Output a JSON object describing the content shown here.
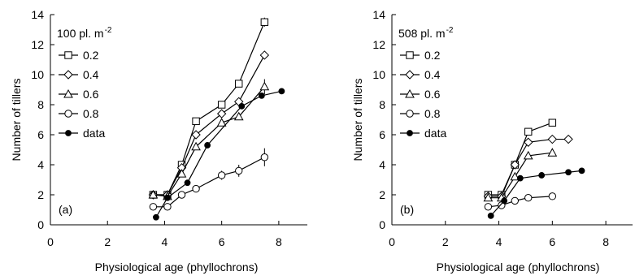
{
  "chart_data": [
    {
      "type": "line",
      "panel_label": "(a)",
      "density_label": "100 pl. m",
      "density_exponent": "-2",
      "xlabel": "Physiological age (phyllochrons)",
      "ylabel": "Number of tillers",
      "xlim": [
        0,
        9
      ],
      "ylim": [
        0,
        14
      ],
      "xticks": [
        0,
        2,
        4,
        6,
        8
      ],
      "yticks": [
        0,
        2,
        4,
        6,
        8,
        10,
        12,
        14
      ],
      "grid": false,
      "legend_position": "top-left",
      "series": [
        {
          "name": "0.2",
          "marker": "square",
          "x": [
            3.6,
            4.1,
            4.6,
            5.1,
            6.0,
            6.6,
            7.5
          ],
          "y": [
            2.0,
            2.0,
            4.0,
            6.9,
            8.0,
            9.4,
            13.5
          ],
          "err": [
            0,
            0,
            0,
            0,
            0,
            0,
            0.3
          ]
        },
        {
          "name": "0.4",
          "marker": "diamond",
          "x": [
            3.6,
            4.1,
            4.6,
            5.1,
            6.0,
            6.6,
            7.5
          ],
          "y": [
            2.0,
            2.0,
            3.8,
            6.0,
            7.4,
            8.2,
            11.3
          ],
          "err": [
            0,
            0,
            0,
            0,
            0,
            0,
            0
          ]
        },
        {
          "name": "0.6",
          "marker": "triangle",
          "x": [
            3.6,
            4.1,
            4.6,
            5.1,
            6.0,
            6.6,
            7.5
          ],
          "y": [
            2.0,
            1.9,
            3.4,
            5.2,
            6.8,
            7.2,
            9.2
          ],
          "err": [
            0,
            0,
            0,
            0,
            0,
            0,
            0.5
          ]
        },
        {
          "name": "0.8",
          "marker": "circle",
          "x": [
            3.6,
            4.1,
            4.6,
            5.1,
            6.0,
            6.6,
            7.5
          ],
          "y": [
            1.2,
            1.2,
            2.0,
            2.4,
            3.3,
            3.6,
            4.5
          ],
          "err": [
            0,
            0,
            0,
            0,
            0.3,
            0.4,
            0.6
          ]
        },
        {
          "name": "data",
          "marker": "filled-circle",
          "x": [
            3.7,
            4.1,
            4.8,
            5.5,
            6.7,
            7.4,
            8.1
          ],
          "y": [
            0.5,
            1.8,
            2.8,
            5.3,
            7.9,
            8.6,
            8.9
          ],
          "err": [
            0,
            0,
            0,
            0,
            0,
            0,
            0
          ]
        }
      ]
    },
    {
      "type": "line",
      "panel_label": "(b)",
      "density_label": "508 pl. m",
      "density_exponent": "-2",
      "xlabel": "Physiological age (phyllochrons)",
      "ylabel": "Number of tillers",
      "xlim": [
        0,
        9
      ],
      "ylim": [
        0,
        14
      ],
      "xticks": [
        0,
        2,
        4,
        6,
        8
      ],
      "yticks": [
        0,
        2,
        4,
        6,
        8,
        10,
        12,
        14
      ],
      "grid": false,
      "legend_position": "top-left",
      "series": [
        {
          "name": "0.2",
          "marker": "square",
          "x": [
            3.6,
            4.1,
            4.6,
            5.1,
            6.0
          ],
          "y": [
            2.0,
            2.0,
            4.0,
            6.2,
            6.8
          ],
          "err": [
            0,
            0,
            0,
            0,
            0
          ]
        },
        {
          "name": "0.4",
          "marker": "diamond",
          "x": [
            3.6,
            4.1,
            4.6,
            5.1,
            6.0,
            6.6
          ],
          "y": [
            1.9,
            1.9,
            4.0,
            5.5,
            5.7,
            5.7
          ],
          "err": [
            0,
            0,
            0,
            0,
            0,
            0
          ]
        },
        {
          "name": "0.6",
          "marker": "triangle",
          "x": [
            3.6,
            4.1,
            4.6,
            5.1,
            6.0
          ],
          "y": [
            1.8,
            1.8,
            3.2,
            4.6,
            4.8
          ],
          "err": [
            0,
            0,
            0,
            0,
            0
          ]
        },
        {
          "name": "0.8",
          "marker": "circle",
          "x": [
            3.6,
            4.1,
            4.6,
            5.1,
            6.0
          ],
          "y": [
            1.2,
            1.3,
            1.6,
            1.8,
            1.9
          ],
          "err": [
            0,
            0,
            0,
            0,
            0
          ]
        },
        {
          "name": "data",
          "marker": "filled-circle",
          "x": [
            3.7,
            4.2,
            4.8,
            5.6,
            6.6,
            7.1
          ],
          "y": [
            0.6,
            1.6,
            3.1,
            3.3,
            3.5,
            3.6
          ],
          "err": [
            0,
            0,
            0,
            0,
            0,
            0
          ]
        }
      ]
    }
  ]
}
